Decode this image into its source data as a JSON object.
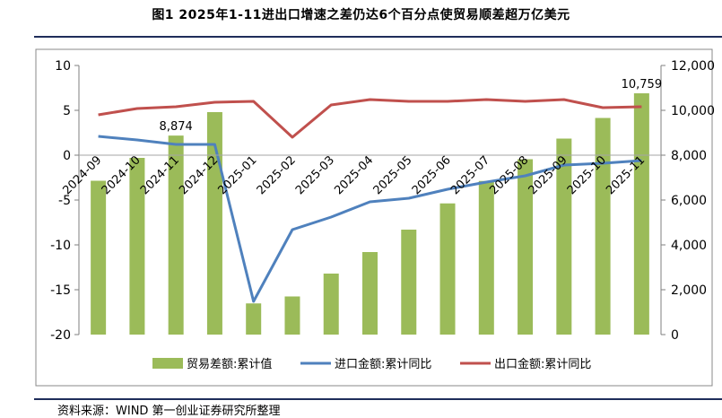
{
  "title": "图1    2025年1-11进出口增速之差仍达6个百分点使贸易顺差超万亿美元",
  "source": "资料来源：WIND   第一创业证券研究所整理",
  "colors": {
    "bar": "#9bbb59",
    "import": "#4f81bd",
    "export": "#c0504d",
    "rule": "#1f2d5a"
  },
  "chart_data": {
    "type": "bar+line",
    "categories": [
      "2024-09",
      "2024-10",
      "2024-11",
      "2024-12",
      "2025-01",
      "2025-02",
      "2025-03",
      "2025-04",
      "2025-05",
      "2025-06",
      "2025-07",
      "2025-08",
      "2025-09",
      "2025-10",
      "2025-11"
    ],
    "left_axis": {
      "ylim": [
        -20,
        10
      ],
      "ticks": [
        "10",
        "5",
        "0",
        "-5",
        "-10",
        "-15",
        "-20"
      ]
    },
    "right_axis": {
      "ylim": [
        0,
        12000
      ],
      "ticks": [
        "12,000",
        "10,000",
        "8,000",
        "6,000",
        "4,000",
        "2,000",
        "0"
      ]
    },
    "series": [
      {
        "name": "贸易差额:累计值",
        "type": "bar",
        "axis": "right",
        "values": [
          6860,
          7880,
          8874,
          9920,
          1390,
          1700,
          2720,
          3680,
          4680,
          5850,
          6850,
          7820,
          8740,
          9660,
          10759
        ]
      },
      {
        "name": "进口金额:累计同比",
        "type": "line",
        "axis": "left",
        "values": [
          2.1,
          1.7,
          1.2,
          1.2,
          -16.3,
          -8.3,
          -6.9,
          -5.2,
          -4.8,
          -3.8,
          -3.0,
          -2.3,
          -1.1,
          -0.9,
          -0.6
        ]
      },
      {
        "name": "出口金额:累计同比",
        "type": "line",
        "axis": "left",
        "values": [
          4.5,
          5.2,
          5.4,
          5.9,
          6.0,
          2.0,
          5.6,
          6.2,
          6.0,
          6.0,
          6.2,
          6.0,
          6.2,
          5.3,
          5.4
        ]
      }
    ],
    "data_labels": [
      {
        "index": 2,
        "text": "8,874"
      },
      {
        "index": 14,
        "text": "10,759"
      }
    ],
    "legend": {
      "placement": "bottom"
    },
    "grid": false
  }
}
